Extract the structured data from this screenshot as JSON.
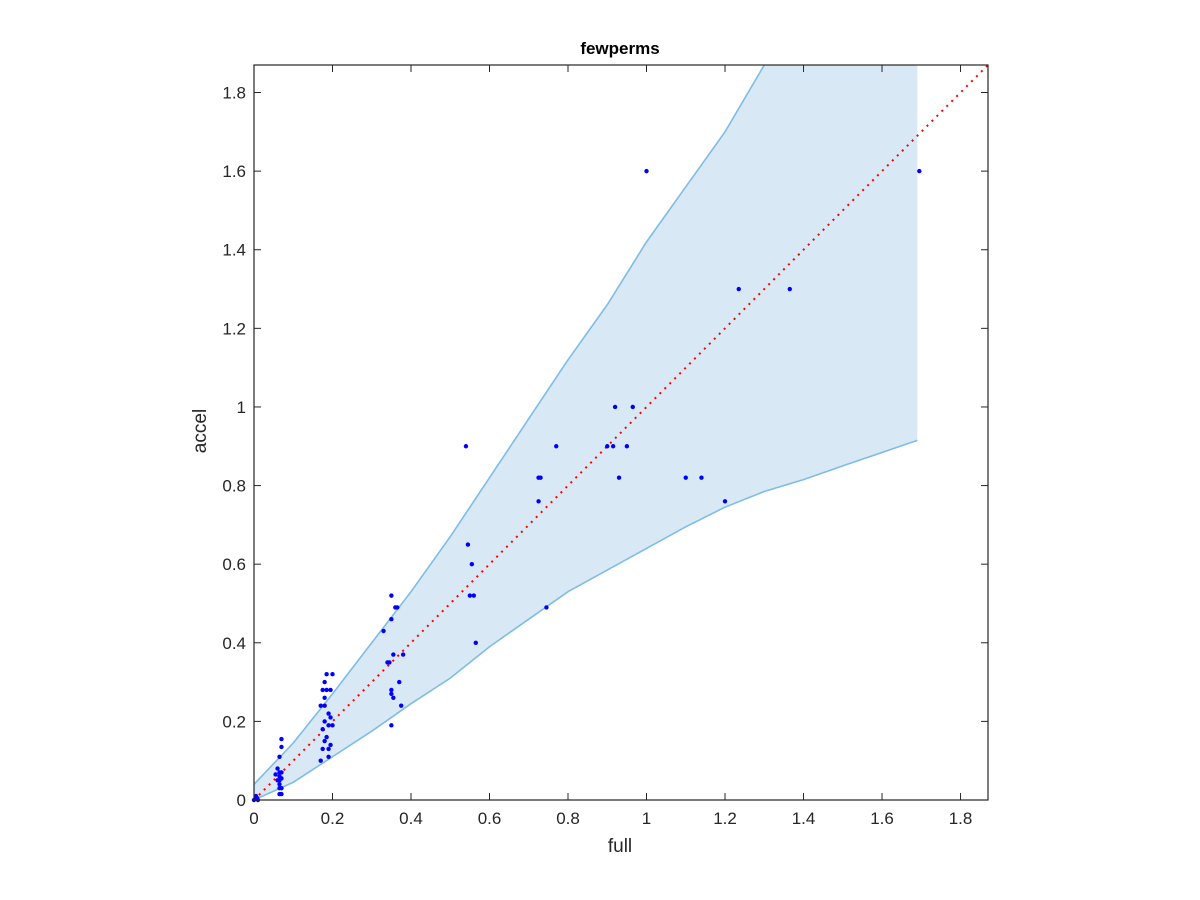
{
  "chart_data": {
    "type": "scatter",
    "title": "fewperms",
    "xlabel": "full",
    "ylabel": "accel",
    "xlim": [
      0,
      1.87
    ],
    "ylim": [
      0,
      1.87
    ],
    "x_ticks": [
      "0",
      "0.2",
      "0.4",
      "0.6",
      "0.8",
      "1",
      "1.2",
      "1.4",
      "1.6",
      "1.8"
    ],
    "y_ticks": [
      "0",
      "0.2",
      "0.4",
      "0.6",
      "0.8",
      "1",
      "1.2",
      "1.4",
      "1.6",
      "1.8"
    ],
    "grid": false,
    "colors": {
      "points": "#0000ff",
      "band_fill": "#d8e8f4",
      "band_edge": "#7fbce6",
      "reference": "#ff0000",
      "axes": "#262626"
    },
    "reference_line": {
      "style": "dotted",
      "x": [
        0,
        1.87
      ],
      "y": [
        0,
        1.87
      ]
    },
    "band": {
      "upper": [
        [
          0,
          0.04
        ],
        [
          0.1,
          0.145
        ],
        [
          0.2,
          0.27
        ],
        [
          0.3,
          0.4
        ],
        [
          0.4,
          0.53
        ],
        [
          0.5,
          0.67
        ],
        [
          0.6,
          0.82
        ],
        [
          0.7,
          0.97
        ],
        [
          0.8,
          1.12
        ],
        [
          0.9,
          1.26
        ],
        [
          1.0,
          1.42
        ],
        [
          1.1,
          1.56
        ],
        [
          1.2,
          1.7
        ],
        [
          1.3,
          1.87
        ],
        [
          1.69,
          1.87
        ]
      ],
      "lower": [
        [
          0,
          0
        ],
        [
          0.1,
          0.045
        ],
        [
          0.2,
          0.11
        ],
        [
          0.3,
          0.175
        ],
        [
          0.4,
          0.245
        ],
        [
          0.5,
          0.31
        ],
        [
          0.6,
          0.39
        ],
        [
          0.7,
          0.46
        ],
        [
          0.8,
          0.53
        ],
        [
          0.9,
          0.585
        ],
        [
          1.0,
          0.64
        ],
        [
          1.1,
          0.695
        ],
        [
          1.2,
          0.745
        ],
        [
          1.3,
          0.785
        ],
        [
          1.4,
          0.815
        ],
        [
          1.5,
          0.85
        ],
        [
          1.69,
          0.915
        ]
      ]
    },
    "series": [
      {
        "x": [
          0,
          0.005,
          0.01,
          0.008,
          0.055,
          0.06,
          0.06,
          0.065,
          0.065,
          0.065,
          0.065,
          0.065,
          0.065,
          0.065,
          0.07,
          0.07,
          0.07,
          0.07,
          0.07,
          0.07,
          0.17,
          0.17,
          0.175,
          0.175,
          0.175,
          0.18,
          0.18,
          0.18,
          0.18,
          0.18,
          0.185,
          0.185,
          0.185,
          0.19,
          0.19,
          0.19,
          0.19,
          0.195,
          0.195,
          0.195,
          0.2,
          0.2,
          0.33,
          0.34,
          0.345,
          0.35,
          0.35,
          0.35,
          0.35,
          0.355,
          0.355,
          0.36,
          0.365,
          0.37,
          0.375,
          0.38,
          0.35,
          0.54,
          0.545,
          0.55,
          0.555,
          0.56,
          0.565,
          0.725,
          0.725,
          0.73,
          0.745,
          0.77,
          0.9,
          0.915,
          0.92,
          0.93,
          0.95,
          0.965,
          1.0,
          1.1,
          1.14,
          1.2,
          1.235,
          1.365,
          1.695
        ],
        "y": [
          0,
          0.01,
          0.0,
          0.005,
          0.065,
          0.05,
          0.08,
          0.015,
          0.03,
          0.04,
          0.05,
          0.06,
          0.07,
          0.11,
          0.015,
          0.03,
          0.055,
          0.07,
          0.135,
          0.155,
          0.1,
          0.24,
          0.13,
          0.18,
          0.28,
          0.15,
          0.2,
          0.24,
          0.26,
          0.3,
          0.16,
          0.28,
          0.32,
          0.11,
          0.13,
          0.19,
          0.22,
          0.14,
          0.21,
          0.28,
          0.19,
          0.32,
          0.43,
          0.35,
          0.35,
          0.19,
          0.28,
          0.46,
          0.52,
          0.26,
          0.37,
          0.49,
          0.49,
          0.3,
          0.24,
          0.37,
          0.27,
          0.9,
          0.65,
          0.52,
          0.6,
          0.52,
          0.4,
          0.76,
          0.82,
          0.82,
          0.49,
          0.9,
          0.9,
          0.9,
          1.0,
          0.82,
          0.9,
          1.0,
          1.6,
          0.82,
          0.82,
          0.76,
          1.3,
          1.3,
          1.6
        ]
      }
    ]
  }
}
